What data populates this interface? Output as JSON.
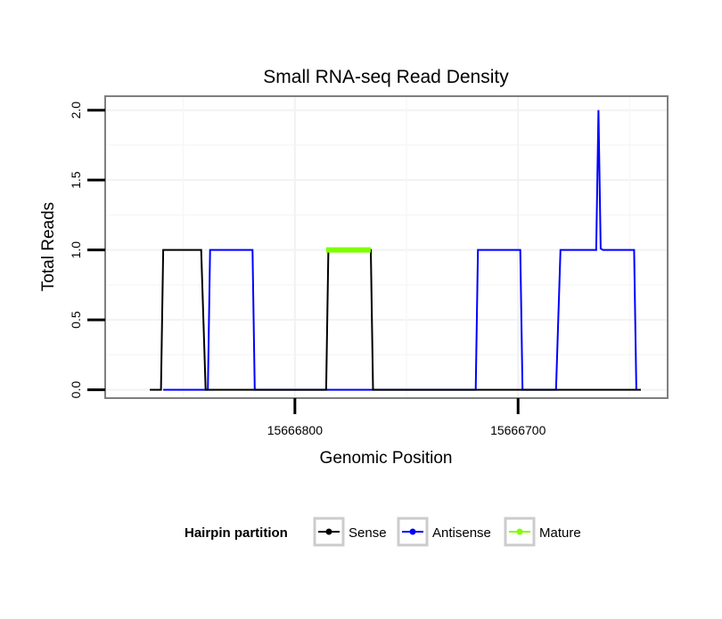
{
  "chart_data": {
    "type": "line",
    "title": "Small RNA-seq Read Density",
    "xlabel": "Genomic Position",
    "ylabel": "Total Reads",
    "x_reversed": true,
    "xlim": [
      15666885,
      15666633
    ],
    "ylim": [
      -0.06,
      2.1
    ],
    "x_ticks": [
      {
        "value": 15666800,
        "label": "15666800"
      },
      {
        "value": 15666700,
        "label": "15666700"
      }
    ],
    "y_ticks": [
      {
        "value": 0.0,
        "label": "0.0"
      },
      {
        "value": 0.5,
        "label": "0.5"
      },
      {
        "value": 1.0,
        "label": "1.0"
      },
      {
        "value": 1.5,
        "label": "1.5"
      },
      {
        "value": 2.0,
        "label": "2.0"
      }
    ],
    "grid": true,
    "legend": {
      "title": "Hairpin partition",
      "position": "bottom",
      "entries": [
        "Sense",
        "Antisense",
        "Mature"
      ]
    },
    "series": [
      {
        "name": "Antisense",
        "color": "#0000ff",
        "x": [
          15666859,
          15666839,
          15666838,
          15666819,
          15666818,
          15666786,
          15666784,
          15666767,
          15666767,
          15666719,
          15666718,
          15666699,
          15666698,
          15666683,
          15666681,
          15666665,
          15666665,
          15666664,
          15666663,
          15666662,
          15666662,
          15666648,
          15666647
        ],
        "y": [
          0,
          0,
          1,
          1,
          0,
          0,
          0,
          0,
          0,
          0,
          1,
          1,
          0,
          0,
          1,
          1,
          1.01,
          2,
          1.01,
          1,
          1,
          1,
          0
        ]
      },
      {
        "name": "Sense",
        "color": "#000000",
        "x": [
          15666865,
          15666860,
          15666859,
          15666842,
          15666840,
          15666786,
          15666785,
          15666766,
          15666765,
          15666645
        ],
        "y": [
          0,
          0,
          1,
          1,
          0,
          0,
          1,
          1,
          0,
          0
        ]
      },
      {
        "name": "Mature",
        "color": "#7fff00",
        "x": [
          15666786,
          15666766
        ],
        "y": [
          1,
          1
        ]
      }
    ]
  }
}
